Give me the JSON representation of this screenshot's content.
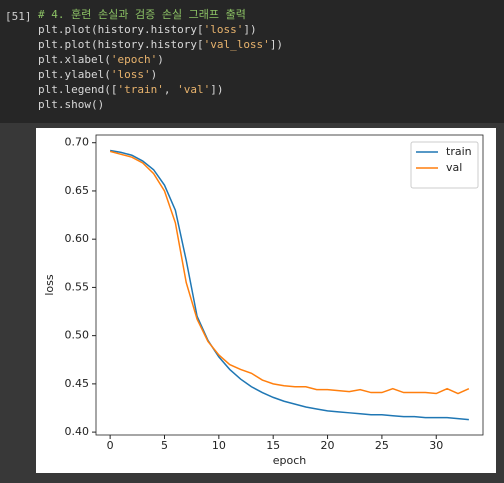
{
  "cell": {
    "prompt": "[51]",
    "lines": [
      [
        {
          "text": "# 4. 훈련 손실과 검증 손실 그래프 출력",
          "color": "#8cc265"
        }
      ],
      [
        {
          "text": "plt.plot(history.history[",
          "color": "#d8d8d8"
        },
        {
          "text": "'loss'",
          "color": "#e8b36d"
        },
        {
          "text": "])",
          "color": "#d8d8d8"
        }
      ],
      [
        {
          "text": "plt.plot(history.history[",
          "color": "#d8d8d8"
        },
        {
          "text": "'val_loss'",
          "color": "#e8b36d"
        },
        {
          "text": "])",
          "color": "#d8d8d8"
        }
      ],
      [
        {
          "text": "plt.xlabel(",
          "color": "#d8d8d8"
        },
        {
          "text": "'epoch'",
          "color": "#e8b36d"
        },
        {
          "text": ")",
          "color": "#d8d8d8"
        }
      ],
      [
        {
          "text": "plt.ylabel(",
          "color": "#d8d8d8"
        },
        {
          "text": "'loss'",
          "color": "#e8b36d"
        },
        {
          "text": ")",
          "color": "#d8d8d8"
        }
      ],
      [
        {
          "text": "plt.legend([",
          "color": "#d8d8d8"
        },
        {
          "text": "'train'",
          "color": "#e8b36d"
        },
        {
          "text": ", ",
          "color": "#d8d8d8"
        },
        {
          "text": "'val'",
          "color": "#e8b36d"
        },
        {
          "text": "])",
          "color": "#d8d8d8"
        }
      ],
      [
        {
          "text": "plt.show()",
          "color": "#d8d8d8"
        }
      ]
    ]
  },
  "chart_data": {
    "type": "line",
    "x_label": "epoch",
    "y_label": "loss",
    "x": [
      0,
      1,
      2,
      3,
      4,
      5,
      6,
      7,
      8,
      9,
      10,
      11,
      12,
      13,
      14,
      15,
      16,
      17,
      18,
      19,
      20,
      21,
      22,
      23,
      24,
      25,
      26,
      27,
      28,
      29,
      30,
      31,
      32,
      33
    ],
    "series": [
      {
        "name": "train",
        "color": "#1f77b4",
        "values": [
          0.692,
          0.69,
          0.687,
          0.681,
          0.672,
          0.656,
          0.63,
          0.578,
          0.52,
          0.495,
          0.478,
          0.465,
          0.455,
          0.447,
          0.441,
          0.436,
          0.432,
          0.429,
          0.426,
          0.424,
          0.422,
          0.421,
          0.42,
          0.419,
          0.418,
          0.418,
          0.417,
          0.416,
          0.416,
          0.415,
          0.415,
          0.415,
          0.414,
          0.413
        ]
      },
      {
        "name": "val",
        "color": "#ff7f0e",
        "values": [
          0.691,
          0.688,
          0.685,
          0.679,
          0.668,
          0.65,
          0.617,
          0.555,
          0.517,
          0.494,
          0.48,
          0.47,
          0.465,
          0.461,
          0.454,
          0.45,
          0.448,
          0.447,
          0.447,
          0.444,
          0.444,
          0.443,
          0.442,
          0.444,
          0.441,
          0.441,
          0.445,
          0.441,
          0.441,
          0.441,
          0.44,
          0.445,
          0.44,
          0.445
        ]
      }
    ],
    "xlim": [
      -1.3,
      34.3
    ],
    "ylim": [
      0.397,
      0.708
    ],
    "xticks": [
      0,
      5,
      10,
      15,
      20,
      25,
      30
    ],
    "yticks": [
      {
        "value": 0.4,
        "label": "0.40"
      },
      {
        "value": 0.45,
        "label": "0.45"
      },
      {
        "value": 0.5,
        "label": "0.50"
      },
      {
        "value": 0.55,
        "label": "0.55"
      },
      {
        "value": 0.6,
        "label": "0.60"
      },
      {
        "value": 0.65,
        "label": "0.65"
      },
      {
        "value": 0.7,
        "label": "0.70"
      }
    ],
    "legend": "upper right"
  }
}
